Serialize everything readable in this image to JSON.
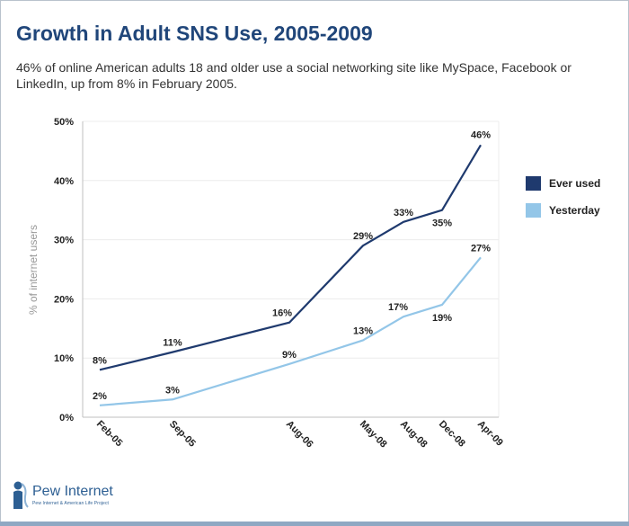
{
  "header": {
    "title": "Growth in Adult SNS Use, 2005-2009",
    "subtitle": "46% of online American adults 18 and older use a social networking site like MySpace, Facebook or LinkedIn, up from 8% in February 2005."
  },
  "chart_data": {
    "type": "line",
    "title": "Growth in Adult SNS Use, 2005-2009",
    "xlabel": "",
    "ylabel": "% of internet users",
    "x": [
      "2005-02",
      "2005-09",
      "2006-08",
      "2008-05",
      "2008-08",
      "2008-12",
      "2009-04"
    ],
    "x_tick_labels": [
      "Feb-05",
      "Sep-05",
      "Aug-06",
      "May-08",
      "Aug-08",
      "Dec-08",
      "Apr-09"
    ],
    "ylim": [
      0,
      50
    ],
    "y_ticks": [
      0,
      10,
      20,
      30,
      40,
      50
    ],
    "y_tick_labels": [
      "0%",
      "10%",
      "20%",
      "30%",
      "40%",
      "50%"
    ],
    "grid": true,
    "legend_position": "right",
    "series": [
      {
        "name": "Ever used",
        "color": "#1f3a6e",
        "values": [
          8,
          11,
          16,
          29,
          33,
          35,
          46
        ],
        "labels": [
          "8%",
          "11%",
          "16%",
          "29%",
          "33%",
          "35%",
          "46%"
        ]
      },
      {
        "name": "Yesterday",
        "color": "#93c6e8",
        "values": [
          2,
          3,
          9,
          13,
          17,
          19,
          27
        ],
        "labels": [
          "2%",
          "3%",
          "9%",
          "13%",
          "17%",
          "19%",
          "27%"
        ]
      }
    ]
  },
  "logo": {
    "name": "Pew Internet",
    "tagline": "Pew Internet & American Life Project",
    "color": "#2d5f93"
  }
}
